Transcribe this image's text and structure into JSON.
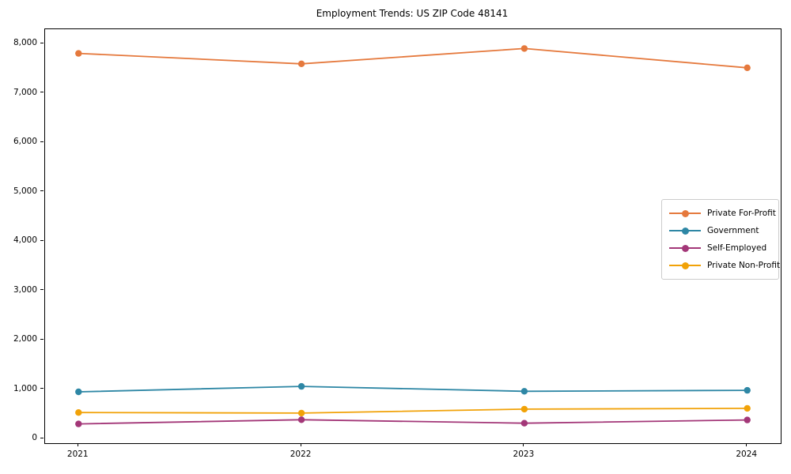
{
  "title": "Employment Trends: US ZIP Code 48141",
  "axis_color": "#000000",
  "legend_border_color": "#cccccc",
  "chart_data": {
    "type": "line",
    "title": "Employment Trends: US ZIP Code 48141",
    "categories": [
      "2021",
      "2022",
      "2023",
      "2024"
    ],
    "series": [
      {
        "name": "Private For-Profit",
        "color": "#E5793D",
        "values": [
          7800,
          7590,
          7900,
          7510
        ]
      },
      {
        "name": "Government",
        "color": "#2E87A5",
        "values": [
          950,
          1060,
          960,
          980
        ]
      },
      {
        "name": "Self-Employed",
        "color": "#A33778",
        "values": [
          300,
          385,
          315,
          380
        ]
      },
      {
        "name": "Private Non-Profit",
        "color": "#F1A208",
        "values": [
          530,
          520,
          600,
          615
        ]
      }
    ],
    "xlabel": "",
    "ylabel": "",
    "ylim": [
      -90,
      8290
    ],
    "yticks": [
      {
        "value": 0,
        "label": "0"
      },
      {
        "value": 1000,
        "label": "1,000"
      },
      {
        "value": 2000,
        "label": "2,000"
      },
      {
        "value": 3000,
        "label": "3,000"
      },
      {
        "value": 4000,
        "label": "4,000"
      },
      {
        "value": 5000,
        "label": "5,000"
      },
      {
        "value": 6000,
        "label": "6,000"
      },
      {
        "value": 7000,
        "label": "7,000"
      },
      {
        "value": 8000,
        "label": "8,000"
      }
    ],
    "grid": false,
    "marker": "o",
    "legend_position": "center right"
  }
}
